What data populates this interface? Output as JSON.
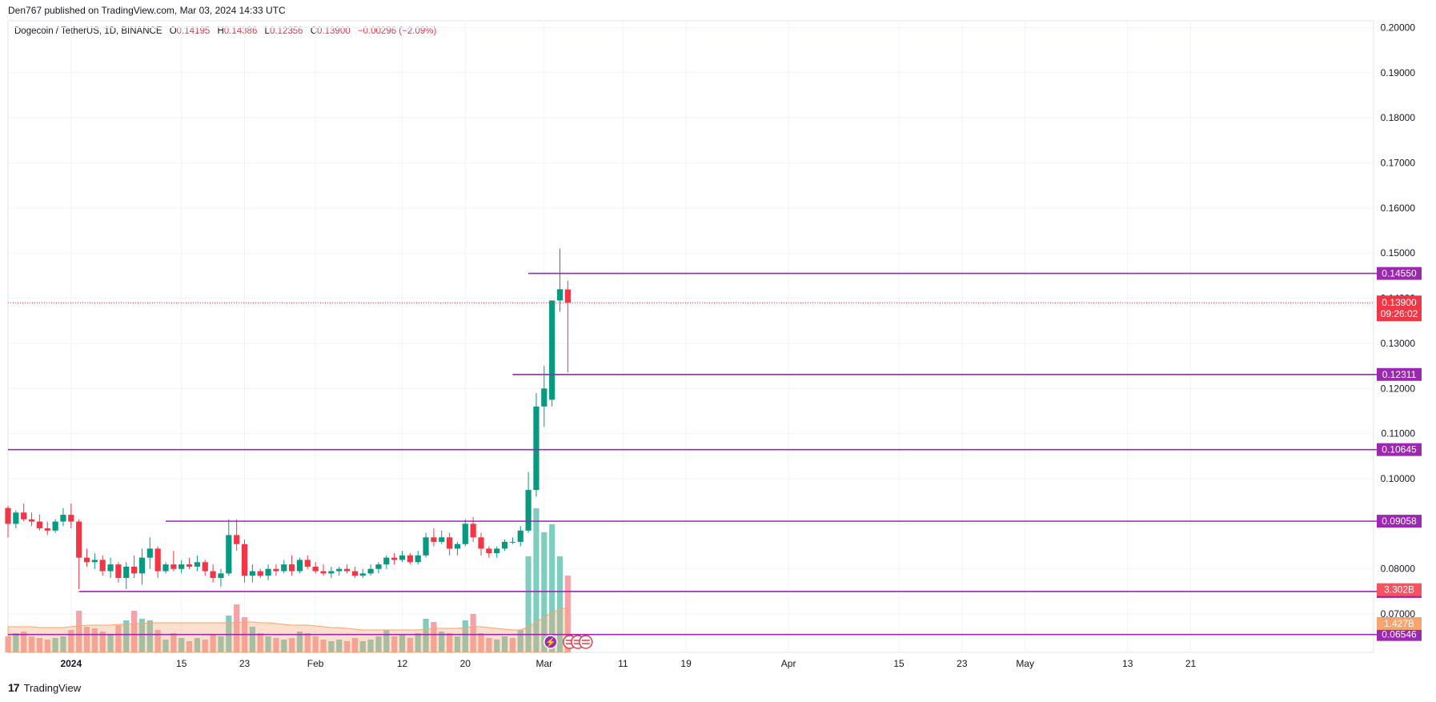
{
  "publish_info": "Den767 published on TradingView.com, Mar 03, 2024 14:33 UTC",
  "footer": {
    "brand": "TradingView",
    "logo_icon": "tradingview-logo-icon"
  },
  "legend": {
    "symbol": "Dogecoin / TetherUS, 1D, BINANCE",
    "open_label": "O",
    "open": "0.14195",
    "high_label": "H",
    "high": "0.14386",
    "low_label": "L",
    "low": "0.12356",
    "close_label": "C",
    "close": "0.13900",
    "change": "−0.00296 (−2.09%)"
  },
  "colors": {
    "up": "#089981",
    "down": "#f23645",
    "level": "#9c27b0",
    "last_price": "#f23645",
    "volume_up": "#7fccc0",
    "volume_down": "#f5a3a9",
    "volume_ma": "#f7a46d"
  },
  "chart_data": {
    "type": "candlestick",
    "timeframe": "1D",
    "ylim": [
      0.06,
      0.2
    ],
    "y_ticks": [
      "0.20000",
      "0.19000",
      "0.18000",
      "0.17000",
      "0.16000",
      "0.15000",
      "0.14000",
      "0.13000",
      "0.12000",
      "0.11000",
      "0.10000",
      "0.09000",
      "0.08000",
      "0.07000"
    ],
    "x_ticks": [
      {
        "label": "2024",
        "day": 8
      },
      {
        "label": "15",
        "day": 22
      },
      {
        "label": "23",
        "day": 30
      },
      {
        "label": "Feb",
        "day": 39
      },
      {
        "label": "12",
        "day": 50
      },
      {
        "label": "20",
        "day": 58
      },
      {
        "label": "Mar",
        "day": 68
      },
      {
        "label": "11",
        "day": 78
      },
      {
        "label": "19",
        "day": 86
      },
      {
        "label": "Apr",
        "day": 99
      },
      {
        "label": "15",
        "day": 113
      },
      {
        "label": "23",
        "day": 121
      },
      {
        "label": "May",
        "day": 129
      },
      {
        "label": "13",
        "day": 142
      },
      {
        "label": "21",
        "day": 150
      }
    ],
    "candles": [
      [
        0.0935,
        0.094,
        0.087,
        0.09
      ],
      [
        0.09,
        0.093,
        0.089,
        0.0925
      ],
      [
        0.0925,
        0.0945,
        0.0905,
        0.091
      ],
      [
        0.091,
        0.0925,
        0.0895,
        0.0905
      ],
      [
        0.0905,
        0.092,
        0.0885,
        0.089
      ],
      [
        0.089,
        0.0905,
        0.0875,
        0.0885
      ],
      [
        0.0885,
        0.091,
        0.088,
        0.0905
      ],
      [
        0.0905,
        0.0935,
        0.0895,
        0.092
      ],
      [
        0.092,
        0.0945,
        0.089,
        0.0905
      ],
      [
        0.0905,
        0.091,
        0.0755,
        0.0825
      ],
      [
        0.0825,
        0.0845,
        0.0805,
        0.0815
      ],
      [
        0.0815,
        0.0835,
        0.08,
        0.082
      ],
      [
        0.082,
        0.083,
        0.0785,
        0.0795
      ],
      [
        0.0795,
        0.0825,
        0.078,
        0.081
      ],
      [
        0.081,
        0.0815,
        0.077,
        0.078
      ],
      [
        0.078,
        0.0815,
        0.0755,
        0.0805
      ],
      [
        0.0805,
        0.083,
        0.078,
        0.079
      ],
      [
        0.079,
        0.0845,
        0.0765,
        0.0825
      ],
      [
        0.0825,
        0.087,
        0.08,
        0.0845
      ],
      [
        0.0845,
        0.085,
        0.078,
        0.0795
      ],
      [
        0.0795,
        0.0815,
        0.079,
        0.081
      ],
      [
        0.081,
        0.084,
        0.0795,
        0.08
      ],
      [
        0.08,
        0.082,
        0.079,
        0.081
      ],
      [
        0.081,
        0.0825,
        0.08,
        0.0805
      ],
      [
        0.0805,
        0.083,
        0.0795,
        0.0815
      ],
      [
        0.0815,
        0.082,
        0.0785,
        0.0795
      ],
      [
        0.0795,
        0.081,
        0.077,
        0.078
      ],
      [
        0.078,
        0.08,
        0.076,
        0.079
      ],
      [
        0.079,
        0.091,
        0.0785,
        0.0875
      ],
      [
        0.0875,
        0.091,
        0.084,
        0.0855
      ],
      [
        0.0855,
        0.0865,
        0.077,
        0.0785
      ],
      [
        0.0785,
        0.081,
        0.077,
        0.0795
      ],
      [
        0.0795,
        0.08,
        0.078,
        0.0785
      ],
      [
        0.0785,
        0.081,
        0.0775,
        0.08
      ],
      [
        0.08,
        0.081,
        0.0785,
        0.0795
      ],
      [
        0.0795,
        0.082,
        0.079,
        0.081
      ],
      [
        0.081,
        0.083,
        0.0785,
        0.0795
      ],
      [
        0.0795,
        0.0825,
        0.079,
        0.082
      ],
      [
        0.082,
        0.083,
        0.08,
        0.0805
      ],
      [
        0.0805,
        0.0815,
        0.079,
        0.0795
      ],
      [
        0.0795,
        0.081,
        0.0785,
        0.079
      ],
      [
        0.079,
        0.0805,
        0.078,
        0.0795
      ],
      [
        0.0795,
        0.0805,
        0.0785,
        0.08
      ],
      [
        0.08,
        0.081,
        0.079,
        0.0795
      ],
      [
        0.0795,
        0.0805,
        0.078,
        0.0785
      ],
      [
        0.0785,
        0.08,
        0.078,
        0.079
      ],
      [
        0.079,
        0.081,
        0.0785,
        0.08
      ],
      [
        0.08,
        0.0815,
        0.079,
        0.081
      ],
      [
        0.081,
        0.083,
        0.08,
        0.0825
      ],
      [
        0.0825,
        0.0835,
        0.081,
        0.082
      ],
      [
        0.082,
        0.084,
        0.0815,
        0.083
      ],
      [
        0.083,
        0.0835,
        0.081,
        0.0815
      ],
      [
        0.0815,
        0.084,
        0.081,
        0.083
      ],
      [
        0.083,
        0.088,
        0.0825,
        0.087
      ],
      [
        0.087,
        0.089,
        0.085,
        0.086
      ],
      [
        0.086,
        0.0885,
        0.0855,
        0.087
      ],
      [
        0.087,
        0.088,
        0.083,
        0.0845
      ],
      [
        0.0845,
        0.086,
        0.083,
        0.0855
      ],
      [
        0.0855,
        0.091,
        0.085,
        0.09
      ],
      [
        0.09,
        0.0915,
        0.086,
        0.087
      ],
      [
        0.087,
        0.088,
        0.083,
        0.0845
      ],
      [
        0.0845,
        0.085,
        0.0825,
        0.0835
      ],
      [
        0.0835,
        0.085,
        0.0825,
        0.0845
      ],
      [
        0.0845,
        0.0865,
        0.084,
        0.086
      ],
      [
        0.086,
        0.087,
        0.0855,
        0.086
      ],
      [
        0.086,
        0.0895,
        0.085,
        0.0885
      ],
      [
        0.0885,
        0.1015,
        0.088,
        0.0975
      ],
      [
        0.0975,
        0.119,
        0.096,
        0.116
      ],
      [
        0.116,
        0.125,
        0.1115,
        0.12
      ],
      [
        0.1175,
        0.139,
        0.116,
        0.1395
      ],
      [
        0.1395,
        0.151,
        0.137,
        0.142
      ],
      [
        0.14195,
        0.14386,
        0.12356,
        0.139
      ]
    ],
    "volume": [
      {
        "v": 1.0,
        "up": false
      },
      {
        "v": 1.2,
        "up": true
      },
      {
        "v": 1.3,
        "up": false
      },
      {
        "v": 1.0,
        "up": false
      },
      {
        "v": 0.9,
        "up": false
      },
      {
        "v": 0.8,
        "up": false
      },
      {
        "v": 0.9,
        "up": true
      },
      {
        "v": 1.0,
        "up": true
      },
      {
        "v": 1.4,
        "up": false
      },
      {
        "v": 2.6,
        "up": false
      },
      {
        "v": 1.6,
        "up": false
      },
      {
        "v": 1.5,
        "up": false
      },
      {
        "v": 1.3,
        "up": false
      },
      {
        "v": 1.1,
        "up": true
      },
      {
        "v": 1.7,
        "up": false
      },
      {
        "v": 2.0,
        "up": true
      },
      {
        "v": 2.6,
        "up": false
      },
      {
        "v": 2.1,
        "up": true
      },
      {
        "v": 2.0,
        "up": true
      },
      {
        "v": 1.4,
        "up": false
      },
      {
        "v": 0.8,
        "up": true
      },
      {
        "v": 1.2,
        "up": false
      },
      {
        "v": 0.9,
        "up": true
      },
      {
        "v": 0.7,
        "up": false
      },
      {
        "v": 0.9,
        "up": true
      },
      {
        "v": 0.8,
        "up": false
      },
      {
        "v": 1.1,
        "up": false
      },
      {
        "v": 1.0,
        "up": true
      },
      {
        "v": 2.3,
        "up": true
      },
      {
        "v": 3.0,
        "up": false
      },
      {
        "v": 2.2,
        "up": false
      },
      {
        "v": 1.6,
        "up": true
      },
      {
        "v": 1.2,
        "up": false
      },
      {
        "v": 1.0,
        "up": true
      },
      {
        "v": 0.9,
        "up": false
      },
      {
        "v": 0.8,
        "up": true
      },
      {
        "v": 0.9,
        "up": false
      },
      {
        "v": 1.3,
        "up": true
      },
      {
        "v": 1.2,
        "up": false
      },
      {
        "v": 1.0,
        "up": false
      },
      {
        "v": 0.8,
        "up": false
      },
      {
        "v": 0.7,
        "up": true
      },
      {
        "v": 0.8,
        "up": true
      },
      {
        "v": 0.7,
        "up": false
      },
      {
        "v": 0.9,
        "up": false
      },
      {
        "v": 0.7,
        "up": true
      },
      {
        "v": 0.8,
        "up": true
      },
      {
        "v": 1.0,
        "up": true
      },
      {
        "v": 1.4,
        "up": true
      },
      {
        "v": 1.0,
        "up": false
      },
      {
        "v": 1.1,
        "up": true
      },
      {
        "v": 0.9,
        "up": false
      },
      {
        "v": 1.2,
        "up": true
      },
      {
        "v": 2.1,
        "up": true
      },
      {
        "v": 1.9,
        "up": false
      },
      {
        "v": 1.3,
        "up": true
      },
      {
        "v": 1.2,
        "up": false
      },
      {
        "v": 1.0,
        "up": true
      },
      {
        "v": 2.0,
        "up": true
      },
      {
        "v": 2.4,
        "up": false
      },
      {
        "v": 1.2,
        "up": false
      },
      {
        "v": 0.9,
        "up": false
      },
      {
        "v": 0.8,
        "up": true
      },
      {
        "v": 1.0,
        "up": true
      },
      {
        "v": 0.9,
        "up": false
      },
      {
        "v": 1.4,
        "up": true
      },
      {
        "v": 6.0,
        "up": true
      },
      {
        "v": 9.0,
        "up": true
      },
      {
        "v": 7.5,
        "up": true
      },
      {
        "v": 8.0,
        "up": true
      },
      {
        "v": 6.0,
        "up": true
      },
      {
        "v": 4.8,
        "up": false
      }
    ],
    "volume_ma": [
      1.6,
      1.6,
      1.6,
      1.6,
      1.55,
      1.55,
      1.55,
      1.55,
      1.6,
      1.65,
      1.7,
      1.7,
      1.7,
      1.7,
      1.75,
      1.75,
      1.8,
      1.8,
      1.85,
      1.85,
      1.85,
      1.85,
      1.85,
      1.85,
      1.85,
      1.85,
      1.85,
      1.85,
      1.85,
      1.85,
      1.9,
      1.9,
      1.85,
      1.85,
      1.8,
      1.75,
      1.7,
      1.7,
      1.7,
      1.65,
      1.6,
      1.55,
      1.55,
      1.5,
      1.45,
      1.4,
      1.4,
      1.4,
      1.4,
      1.4,
      1.4,
      1.4,
      1.4,
      1.45,
      1.5,
      1.5,
      1.5,
      1.5,
      1.55,
      1.6,
      1.6,
      1.55,
      1.5,
      1.45,
      1.4,
      1.4,
      1.6,
      1.9,
      2.2,
      2.5,
      2.7,
      2.8
    ],
    "levels": [
      {
        "price": 0.1455,
        "label": "0.14550",
        "from_day": 66
      },
      {
        "price": 0.12311,
        "label": "0.12311",
        "from_day": 64
      },
      {
        "price": 0.10645,
        "label": "0.10645",
        "from_day": 0
      },
      {
        "price": 0.09058,
        "label": "0.09058",
        "from_day": 20
      },
      {
        "price": 0.075,
        "label": "0.07500",
        "from_day": 9
      },
      {
        "price": 0.06546,
        "label": "0.06546",
        "from_day": 0
      }
    ],
    "last_price": {
      "price": 0.139,
      "label": "0.13900",
      "countdown": "09:26:02"
    },
    "volume_labels": [
      {
        "label": "3.302B",
        "color": "#f7525f",
        "price": 0.0754
      },
      {
        "label": "1.427B",
        "color": "#f7a46d",
        "price": 0.0679
      }
    ],
    "overlapped_tick": "0.07000",
    "events": {
      "icon": "lightning-icon",
      "flag_icon": "us-flag-icon",
      "flags": 3
    }
  }
}
